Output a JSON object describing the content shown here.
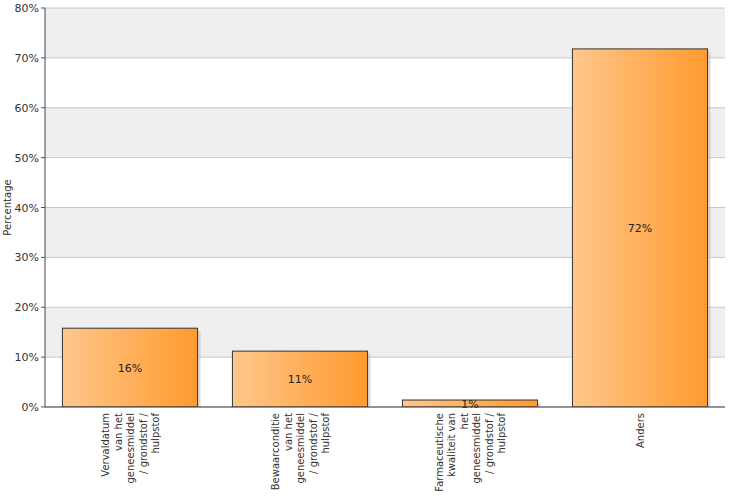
{
  "chart_data": {
    "type": "bar",
    "y_label": "Percentage",
    "categories": [
      "Vervaldatum van het geneesmiddel / grondstof / hulpstof",
      "Bewaarconditie van het geneesmiddel / grondstof / hulpstof",
      "Farmaceutische kwaliteit van het geneesmiddel / grondstof / hulpstof",
      "Anders"
    ],
    "values": [
      15.8,
      11.2,
      1.4,
      71.8
    ],
    "value_labels": [
      "16%",
      "11%",
      "1%",
      "72%"
    ],
    "color": "#ff9a2e",
    "ylim": [
      0,
      80
    ],
    "yticks": [
      {
        "value": 0,
        "label": "0%"
      },
      {
        "value": 10,
        "label": "10%"
      },
      {
        "value": 20,
        "label": "20%"
      },
      {
        "value": 30,
        "label": "30%"
      },
      {
        "value": 40,
        "label": "40%"
      },
      {
        "value": 50,
        "label": "50%"
      },
      {
        "value": 60,
        "label": "60%"
      },
      {
        "value": 70,
        "label": "70%"
      },
      {
        "value": 80,
        "label": "80%"
      }
    ],
    "grid": true,
    "data_labels": true
  }
}
